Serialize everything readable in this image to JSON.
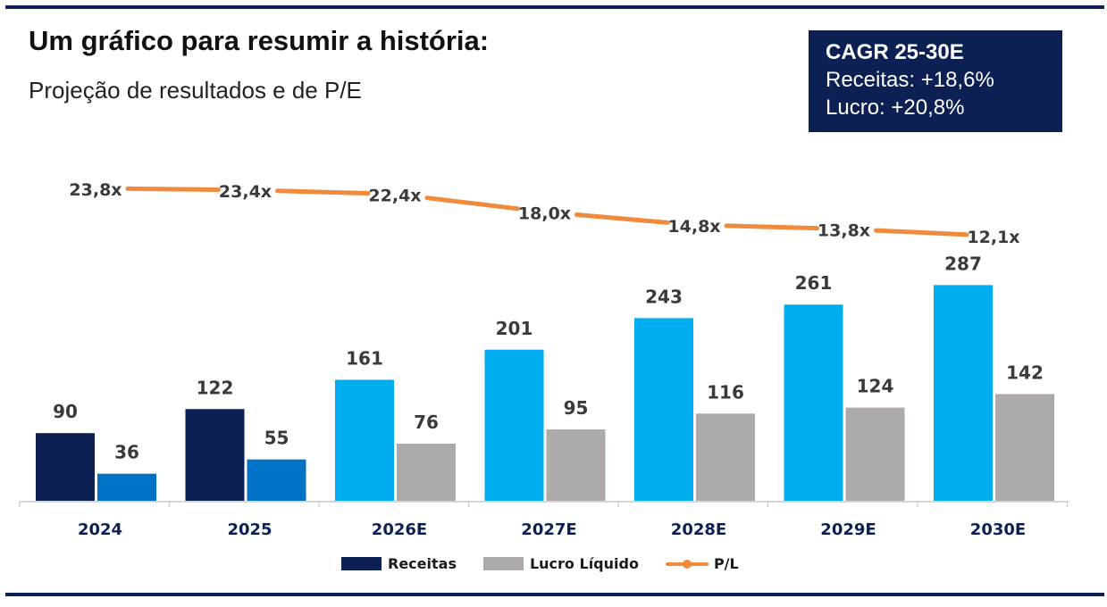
{
  "header": {
    "title": "Um gráfico para resumir a história:",
    "subtitle": "Projeção de resultados e de P/E"
  },
  "cagr_box": {
    "heading": "CAGR 25-30E",
    "line1": "Receitas: +18,6%",
    "line2": "Lucro: +20,8%"
  },
  "colors": {
    "dark_navy": "#0d2054",
    "light_blue": "#00aeef",
    "mid_blue": "#0072c6",
    "gray": "#aeaaaa",
    "orange": "#f08a3c"
  },
  "chart_data": {
    "type": "bar",
    "categories": [
      "2024",
      "2025",
      "2026E",
      "2027E",
      "2028E",
      "2029E",
      "2030E"
    ],
    "series": [
      {
        "name": "Receitas",
        "values": [
          90,
          122,
          161,
          201,
          243,
          261,
          287
        ],
        "colors": [
          "#0d2054",
          "#0d2054",
          "#00aeef",
          "#00aeef",
          "#00aeef",
          "#00aeef",
          "#00aeef"
        ]
      },
      {
        "name": "Lucro Líquido",
        "values": [
          36,
          55,
          76,
          95,
          116,
          124,
          142
        ],
        "colors": [
          "#0072c6",
          "#0072c6",
          "#aeaaaa",
          "#aeaaaa",
          "#aeaaaa",
          "#aeaaaa",
          "#aeaaaa"
        ]
      },
      {
        "name": "P/L",
        "type": "line",
        "values": [
          23.8,
          23.4,
          22.4,
          18.0,
          14.8,
          13.8,
          12.1
        ],
        "labels": [
          "23,8x",
          "23,4x",
          "22,4x",
          "18,0x",
          "14,8x",
          "13,8x",
          "12,1x"
        ],
        "color": "#f08a3c"
      }
    ],
    "legend": {
      "position": "bottom",
      "entries": [
        "Receitas",
        "Lucro Líquido",
        "P/L"
      ]
    },
    "grid": false
  }
}
